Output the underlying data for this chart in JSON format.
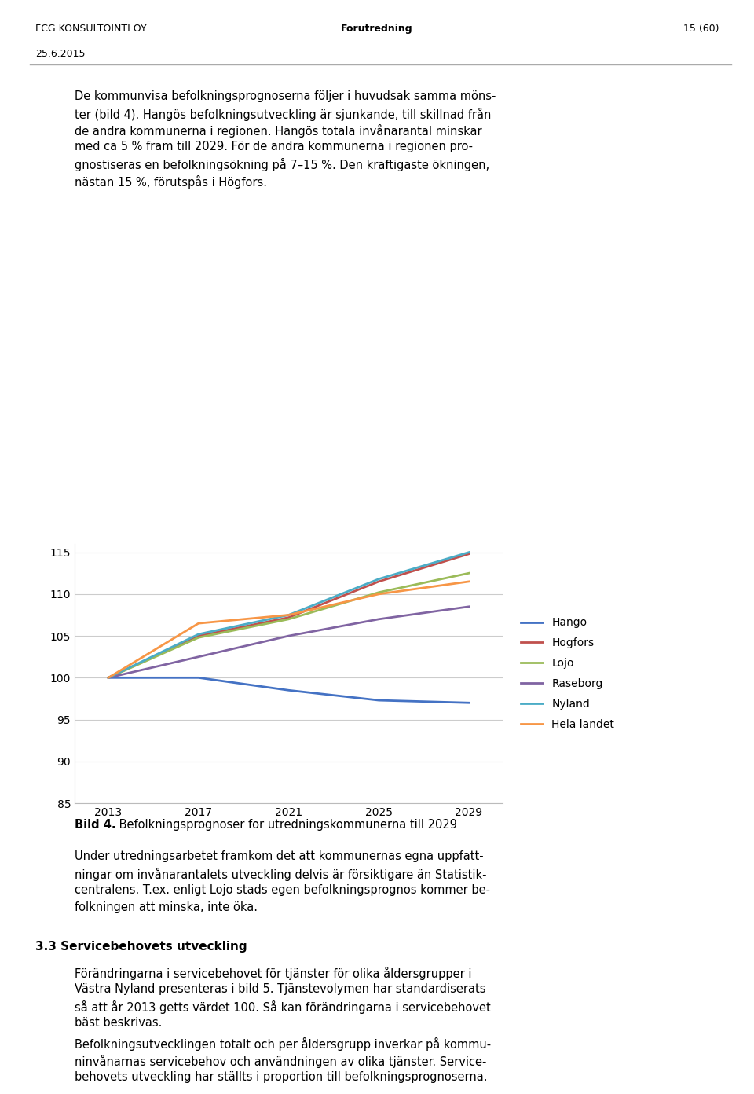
{
  "header_left": "FCG KONSULTOINTI OY",
  "header_center": "Forutredning",
  "header_right": "15 (60)",
  "header_date": "25.6.2015",
  "intro_para": "De kommunvisa befolkningsprognoserna foljer i huvudsak samma monster (bild 4). Hangos befolkningsutveckling ar sjunkande, till skillnad fran de andra kommunerna i regionen. Hangos totala invanarantal minskar med ca 5 % fram till 2029. For de andra kommunerna i regionen prog-nostiseras en befolkningsokning pa 7-15 %. Den kraftigaste okningen, nastan 15 %, forutspaas i Hogfors.",
  "years": [
    2013,
    2017,
    2021,
    2025,
    2029
  ],
  "series_names": [
    "Hango",
    "Hogfors",
    "Lojo",
    "Raseborg",
    "Nyland",
    "Hela landet"
  ],
  "series_values": [
    [
      100,
      100.0,
      98.5,
      97.3,
      97.0
    ],
    [
      100,
      105.0,
      107.2,
      111.5,
      114.8
    ],
    [
      100,
      104.8,
      107.0,
      110.2,
      112.5
    ],
    [
      100,
      102.5,
      105.0,
      107.0,
      108.5
    ],
    [
      100,
      105.2,
      107.5,
      111.8,
      115.0
    ],
    [
      100,
      106.5,
      107.5,
      110.0,
      111.5
    ]
  ],
  "series_colors": [
    "#4472C4",
    "#C0504D",
    "#9BBB59",
    "#8064A2",
    "#4BACC6",
    "#F79646"
  ],
  "ylim": [
    85,
    116
  ],
  "yticks": [
    85,
    90,
    95,
    100,
    105,
    110,
    115
  ],
  "caption_bold": "Bild 4.",
  "caption_rest": " Befolkningsprognoser for utredningskommunerna till 2029",
  "body1": "Under utredningsarbetet framkom det att kommunernas egna uppfattningar om invanaranta-lets utveckling delvis ar forsiktigare an Statistik-centralens. T.ex. enligt Lojo stads egen befolkningsprognos kommer be-folkningen att minska, inte oka.",
  "section_title": "3.3 Servicebehovets utveckling",
  "body2": "Forandringarna i servicebehovet for tjanster for olika aldersgrupper i Vastra Nyland presenteras i bild 5. Tjanstevolymen har standardiserats sa att ar 2013 getts vardet 100. Sa kan forandringarna i servicebehovet bast beskrivas.",
  "body3": "Befolkningsutvecklingen totalt och per aldersgrupp inverkar pa kommu-ninvanarnas servicebehov och anvandningen av olika tjanster. Service-behovets utveckling har stallts i proportion till befolkningsprognoserna."
}
